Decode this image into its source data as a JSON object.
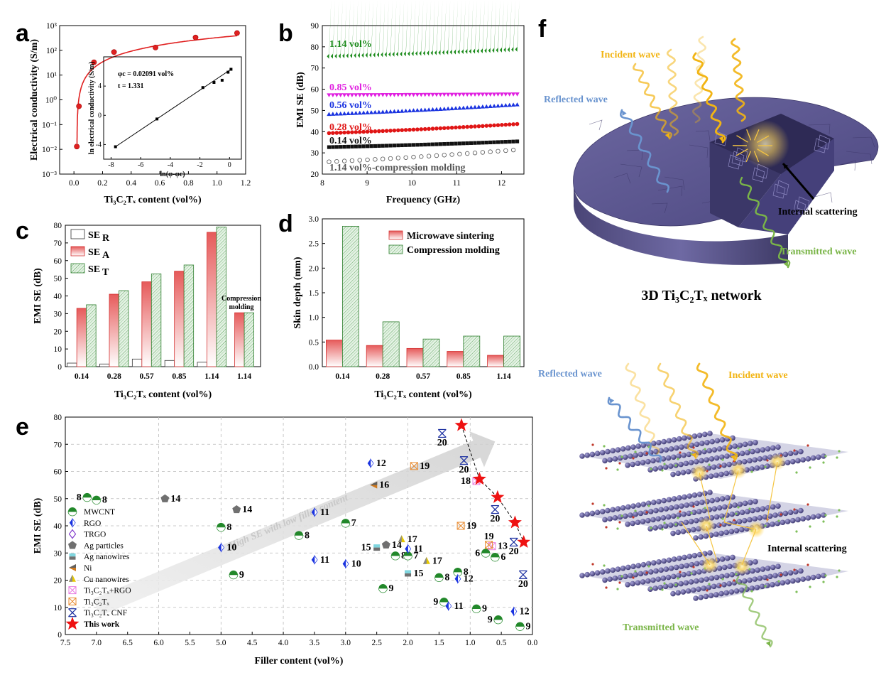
{
  "panel_letters": [
    "a",
    "b",
    "c",
    "d",
    "e",
    "f"
  ],
  "chart_data": [
    {
      "id": "a",
      "type": "scatter",
      "xlabel": "Ti₃C₂Tₓ content (vol%)",
      "ylabel": "Electrical conductivity (S/m)",
      "yscale": "log",
      "xlim": [
        -0.1,
        1.2
      ],
      "ylim_exp": [
        -3,
        3
      ],
      "xticks": [
        "0.0",
        "0.2",
        "0.4",
        "0.6",
        "0.8",
        "1.0",
        "1.2"
      ],
      "yticks": [
        "10⁻³",
        "10⁻²",
        "10⁻¹",
        "10⁰",
        "10¹",
        "10²",
        "10³"
      ],
      "points": [
        [
          0.02,
          0.013
        ],
        [
          0.035,
          0.55
        ],
        [
          0.14,
          33
        ],
        [
          0.28,
          85
        ],
        [
          0.57,
          130
        ],
        [
          0.85,
          330
        ],
        [
          1.14,
          500
        ]
      ],
      "inset": {
        "xlabel": "ln(φ-φc)",
        "ylabel": "ln electrical conductivity (S/m)",
        "xticks": [
          "-8",
          "-6",
          "-4",
          "-2",
          "0"
        ],
        "yticks": [
          "-4",
          "0",
          "4"
        ],
        "points": [
          [
            -7.7,
            -4.3
          ],
          [
            -4.9,
            -0.5
          ],
          [
            -1.8,
            3.8
          ],
          [
            -1.05,
            4.5
          ],
          [
            -0.5,
            4.8
          ],
          [
            -0.1,
            5.9
          ],
          [
            0.1,
            6.3
          ]
        ],
        "line": [
          [
            -7.7,
            -4.3
          ],
          [
            0.1,
            6.3
          ]
        ],
        "annotations": [
          "φc = 0.02091 vol%",
          "t = 1.331"
        ]
      }
    },
    {
      "id": "b",
      "type": "line",
      "xlabel": "Frequency (GHz)",
      "ylabel": "EMI SE (dB)",
      "xlim": [
        8,
        12.5
      ],
      "ylim": [
        20,
        90
      ],
      "xticks": [
        "8",
        "9",
        "10",
        "11",
        "12"
      ],
      "yticks": [
        "20",
        "30",
        "40",
        "50",
        "60",
        "70",
        "80",
        "90"
      ],
      "series": [
        {
          "name": "1.14 vol%",
          "start": 75.5,
          "end": 78.8,
          "color": "#1a8a1a",
          "marker": "diamond"
        },
        {
          "name": "0.85 vol%",
          "start": 57.2,
          "end": 57.6,
          "color": "#e020e0",
          "marker": "tri-down"
        },
        {
          "name": "0.56 vol%",
          "start": 48.3,
          "end": 52.8,
          "color": "#1a33e0",
          "marker": "tri-up"
        },
        {
          "name": "0.28 vol%",
          "start": 39.3,
          "end": 43.6,
          "color": "#e01515",
          "marker": "circle"
        },
        {
          "name": "0.14 vol%",
          "start": 32.7,
          "end": 35.4,
          "color": "#111111",
          "marker": "square"
        },
        {
          "name": "1.14 vol%-compression molding",
          "start": 25.8,
          "end": 31.5,
          "color": "#555555",
          "marker": "open-circle"
        }
      ]
    },
    {
      "id": "c",
      "type": "bar",
      "xlabel": "Ti₃C₂Tₓ content (vol%)",
      "ylabel": "EMI SE (dB)",
      "ylim": [
        0,
        80
      ],
      "yticks": [
        "0",
        "10",
        "20",
        "30",
        "40",
        "50",
        "60",
        "70",
        "80"
      ],
      "categories": [
        "0.14",
        "0.28",
        "0.57",
        "0.85",
        "1.14",
        "1.14"
      ],
      "series": [
        {
          "name": "SE",
          "sub": "R",
          "values": [
            2.0,
            1.5,
            4.3,
            3.5,
            2.5,
            null
          ]
        },
        {
          "name": "SE",
          "sub": "A",
          "values": [
            33,
            41,
            48,
            54,
            76,
            30.5
          ]
        },
        {
          "name": "SE",
          "sub": "T",
          "values": [
            35,
            43,
            52.5,
            57.5,
            79,
            30.5
          ]
        }
      ],
      "annotation": [
        "Compression",
        "molding"
      ]
    },
    {
      "id": "d",
      "type": "bar",
      "xlabel": "Ti₃C₂Tₓ content (vol%)",
      "ylabel": "Skin depth (mm)",
      "ylim": [
        0,
        3.0
      ],
      "yticks": [
        "0.0",
        "0.5",
        "1.0",
        "1.5",
        "2.0",
        "2.5",
        "3.0"
      ],
      "categories": [
        "0.14",
        "0.28",
        "0.57",
        "0.85",
        "1.14"
      ],
      "series": [
        {
          "name": "Microwave sintering",
          "values": [
            0.54,
            0.43,
            0.37,
            0.31,
            0.23
          ]
        },
        {
          "name": "Compression molding",
          "values": [
            2.85,
            0.91,
            0.56,
            0.62,
            0.62
          ]
        }
      ]
    },
    {
      "id": "e",
      "type": "scatter",
      "xlabel": "Filler content (vol%)",
      "ylabel": "EMI SE (dB)",
      "xlim": [
        7.5,
        0.0
      ],
      "ylim": [
        0,
        80
      ],
      "xticks": [
        "7.5",
        "7.0",
        "6.5",
        "6.0",
        "5.5",
        "5.0",
        "4.5",
        "4.0",
        "3.5",
        "3.0",
        "2.5",
        "2.0",
        "1.5",
        "1.0",
        "0.5",
        "0.0"
      ],
      "yticks": [
        "0",
        "10",
        "20",
        "30",
        "40",
        "50",
        "60",
        "70",
        "80"
      ],
      "arrow_text": "High SE with low filler content",
      "legend": [
        "MWCNT",
        "RGO",
        "TRGO",
        "Ag particles",
        "Ag nanowires",
        "Ni",
        "Cu nanowires",
        "Ti₃C₂Tₓ+RGO",
        "Ti₃C₂Tₓ",
        "Ti₃C₂Tₓ CNF",
        "This work"
      ],
      "points": [
        {
          "t": "MWCNT",
          "x": 7.15,
          "y": 50.5,
          "ref": "8",
          "side": "left"
        },
        {
          "t": "MWCNT",
          "x": 7.0,
          "y": 49.5,
          "ref": "8",
          "side": "right"
        },
        {
          "t": "MWCNT",
          "x": 5.0,
          "y": 39.5,
          "ref": "8",
          "side": "right"
        },
        {
          "t": "MWCNT",
          "x": 3.75,
          "y": 36.5,
          "ref": "8",
          "side": "right"
        },
        {
          "t": "MWCNT",
          "x": 4.8,
          "y": 22,
          "ref": "9",
          "side": "right"
        },
        {
          "t": "MWCNT",
          "x": 3.0,
          "y": 41,
          "ref": "7",
          "side": "right"
        },
        {
          "t": "MWCNT",
          "x": 2.4,
          "y": 17,
          "ref": "9",
          "side": "right"
        },
        {
          "t": "MWCNT",
          "x": 2.2,
          "y": 29,
          "ref": "8",
          "side": "right"
        },
        {
          "t": "MWCNT",
          "x": 2.0,
          "y": 29,
          "ref": "7",
          "side": "right"
        },
        {
          "t": "MWCNT",
          "x": 1.5,
          "y": 21,
          "ref": "8",
          "side": "right"
        },
        {
          "t": "MWCNT",
          "x": 1.42,
          "y": 12,
          "ref": "9",
          "side": "left"
        },
        {
          "t": "MWCNT",
          "x": 1.2,
          "y": 23,
          "ref": "8",
          "side": "right"
        },
        {
          "t": "MWCNT",
          "x": 0.9,
          "y": 9.5,
          "ref": "9",
          "side": "right"
        },
        {
          "t": "MWCNT",
          "x": 0.75,
          "y": 30,
          "ref": "6",
          "side": "left"
        },
        {
          "t": "MWCNT",
          "x": 0.6,
          "y": 28.5,
          "ref": "6",
          "side": "right"
        },
        {
          "t": "MWCNT",
          "x": 0.55,
          "y": 5.5,
          "ref": "9",
          "side": "left"
        },
        {
          "t": "MWCNT",
          "x": 0.2,
          "y": 3,
          "ref": "9",
          "side": "right"
        },
        {
          "t": "RGO",
          "x": 5.0,
          "y": 32,
          "ref": "10",
          "side": "right"
        },
        {
          "t": "RGO",
          "x": 3.5,
          "y": 45,
          "ref": "11",
          "side": "right"
        },
        {
          "t": "RGO",
          "x": 3.5,
          "y": 27.5,
          "ref": "11",
          "side": "right"
        },
        {
          "t": "RGO",
          "x": 3.0,
          "y": 26,
          "ref": "10",
          "side": "right"
        },
        {
          "t": "RGO",
          "x": 2.6,
          "y": 63,
          "ref": "12",
          "side": "right"
        },
        {
          "t": "RGO",
          "x": 2.0,
          "y": 31.5,
          "ref": "11",
          "side": "right"
        },
        {
          "t": "RGO",
          "x": 1.35,
          "y": 10.5,
          "ref": "11",
          "side": "right"
        },
        {
          "t": "RGO",
          "x": 1.2,
          "y": 20.5,
          "ref": "12",
          "side": "right"
        },
        {
          "t": "RGO",
          "x": 0.3,
          "y": 8.5,
          "ref": "12",
          "side": "right"
        },
        {
          "t": "Ag particles",
          "x": 5.9,
          "y": 50,
          "ref": "14",
          "side": "right"
        },
        {
          "t": "Ag particles",
          "x": 4.75,
          "y": 46,
          "ref": "14",
          "side": "right"
        },
        {
          "t": "Ag particles",
          "x": 2.35,
          "y": 33,
          "ref": "14",
          "side": "right"
        },
        {
          "t": "Ag nanowires",
          "x": 2.5,
          "y": 32,
          "ref": "15",
          "side": "left"
        },
        {
          "t": "Ag nanowires",
          "x": 2.0,
          "y": 22.5,
          "ref": "15",
          "side": "right"
        },
        {
          "t": "Ni",
          "x": 2.55,
          "y": 55,
          "ref": "16",
          "side": "right"
        },
        {
          "t": "Cu nanowires",
          "x": 2.1,
          "y": 35,
          "ref": "17",
          "side": "right"
        },
        {
          "t": "Cu nanowires",
          "x": 1.7,
          "y": 27,
          "ref": "17",
          "side": "right"
        },
        {
          "t": "Ti₃C₂Tₓ+RGO",
          "x": 0.9,
          "y": 56.5,
          "ref": "18",
          "side": "left"
        },
        {
          "t": "Ti₃C₂Tₓ+RGO",
          "x": 0.65,
          "y": 32.5,
          "ref": "13",
          "side": "right"
        },
        {
          "t": "Ti₃C₂Tₓ",
          "x": 1.9,
          "y": 62,
          "ref": "19",
          "side": "right"
        },
        {
          "t": "Ti₃C₂Tₓ",
          "x": 1.15,
          "y": 40,
          "ref": "19",
          "side": "right"
        },
        {
          "t": "Ti₃C₂Tₓ",
          "x": 0.7,
          "y": 33,
          "ref": "19",
          "side": "above"
        },
        {
          "t": "Ti₃C₂Tₓ CNF",
          "x": 1.45,
          "y": 74,
          "ref": "20",
          "side": "below"
        },
        {
          "t": "Ti₃C₂Tₓ CNF",
          "x": 1.1,
          "y": 64,
          "ref": "20",
          "side": "below"
        },
        {
          "t": "Ti₃C₂Tₓ CNF",
          "x": 0.6,
          "y": 46,
          "ref": "20",
          "side": "below"
        },
        {
          "t": "Ti₃C₂Tₓ CNF",
          "x": 0.3,
          "y": 34,
          "ref": "20",
          "side": "below"
        },
        {
          "t": "Ti₃C₂Tₓ CNF",
          "x": 0.15,
          "y": 22,
          "ref": "20",
          "side": "below"
        }
      ],
      "this_work": [
        [
          1.14,
          77
        ],
        [
          0.85,
          57.2
        ],
        [
          0.56,
          50.5
        ],
        [
          0.28,
          41.2
        ],
        [
          0.14,
          34
        ]
      ]
    }
  ],
  "panel_f": {
    "top": {
      "labels": [
        "Incident wave",
        "Reflected wave",
        "Internal scattering",
        "Transmitted wave"
      ],
      "caption": "3D Ti₃C₂Tₓ network"
    },
    "bottom": {
      "labels": [
        "Reflected wave",
        "Incident wave",
        "Internal scattering",
        "Transmitted wave"
      ]
    }
  },
  "colors": {
    "incident": "#f2b413",
    "reflected": "#6a94cf",
    "transmitted": "#7ab548",
    "network": "#5f5a8f"
  }
}
